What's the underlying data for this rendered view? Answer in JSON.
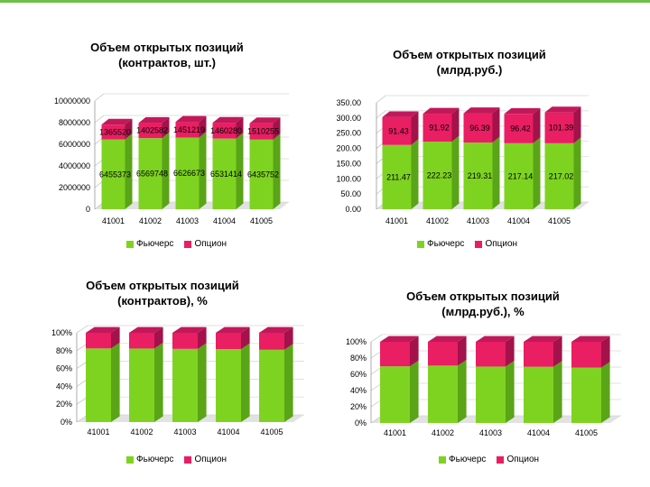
{
  "colors": {
    "futures": "#7ed321",
    "futures_side": "#5aa417",
    "futures_top": "#a6e35d",
    "options": "#e91e63",
    "options_side": "#a3124a",
    "options_top": "#c2185b",
    "floor": "#cfcfcf",
    "wall": "#ffffff"
  },
  "legend": {
    "futures": "Фьючерс",
    "options": "Опцион"
  },
  "chart_data": [
    {
      "type": "bar",
      "stacked": true,
      "title": "Объем открытых позиций\n(контрактов, шт.)",
      "categories": [
        "41001",
        "41002",
        "41003",
        "41004",
        "41005"
      ],
      "ylim": [
        0,
        10000000
      ],
      "yticks": [
        "0",
        "2000000",
        "4000000",
        "6000000",
        "8000000",
        "10000000"
      ],
      "series": [
        {
          "name": "Фьючерс",
          "values": [
            6455373,
            6569748,
            6626673,
            6531414,
            6435752
          ],
          "labels": [
            "6455373",
            "6569748",
            "6626673",
            "6531414",
            "6435752"
          ]
        },
        {
          "name": "Опцион",
          "values": [
            1365520,
            1402582,
            1451219,
            1460280,
            1510255
          ],
          "labels": [
            "1365520",
            "1402582",
            "1451219",
            "1460280",
            "1510255"
          ]
        }
      ]
    },
    {
      "type": "bar",
      "stacked": true,
      "title": "Объем открытых позиций\n(млрд.руб.)",
      "categories": [
        "41001",
        "41002",
        "41003",
        "41004",
        "41005"
      ],
      "ylim": [
        0,
        350
      ],
      "yticks": [
        "0.00",
        "50.00",
        "100.00",
        "150.00",
        "200.00",
        "250.00",
        "300.00",
        "350.00"
      ],
      "series": [
        {
          "name": "Фьючерс",
          "values": [
            211.47,
            222.23,
            219.31,
            217.14,
            217.02
          ],
          "labels": [
            "211.47",
            "222.23",
            "219.31",
            "217.14",
            "217.02"
          ]
        },
        {
          "name": "Опцион",
          "values": [
            91.43,
            91.92,
            96.39,
            96.42,
            101.39
          ],
          "labels": [
            "91.43",
            "91.92",
            "96.39",
            "96.42",
            "101.39"
          ]
        }
      ]
    },
    {
      "type": "bar",
      "stacked": true,
      "percent": true,
      "title": "Объем открытых позиций\n(контрактов), %",
      "categories": [
        "41001",
        "41002",
        "41003",
        "41004",
        "41005"
      ],
      "ylim": [
        0,
        100
      ],
      "yticks": [
        "0%",
        "20%",
        "40%",
        "60%",
        "80%",
        "100%"
      ],
      "series": [
        {
          "name": "Фьючерс",
          "values": [
            82.5,
            82.4,
            82.0,
            81.7,
            81.0
          ]
        },
        {
          "name": "Опцион",
          "values": [
            17.5,
            17.6,
            18.0,
            18.3,
            19.0
          ]
        }
      ]
    },
    {
      "type": "bar",
      "stacked": true,
      "percent": true,
      "title": "Объем открытых позиций\n(млрд.руб.), %",
      "categories": [
        "41001",
        "41002",
        "41003",
        "41004",
        "41005"
      ],
      "ylim": [
        0,
        100
      ],
      "yticks": [
        "0%",
        "20%",
        "40%",
        "60%",
        "80%",
        "100%"
      ],
      "series": [
        {
          "name": "Фьючерс",
          "values": [
            69.8,
            70.7,
            69.5,
            69.3,
            68.2
          ]
        },
        {
          "name": "Опцион",
          "values": [
            30.2,
            29.3,
            30.5,
            30.7,
            31.8
          ]
        }
      ]
    }
  ]
}
